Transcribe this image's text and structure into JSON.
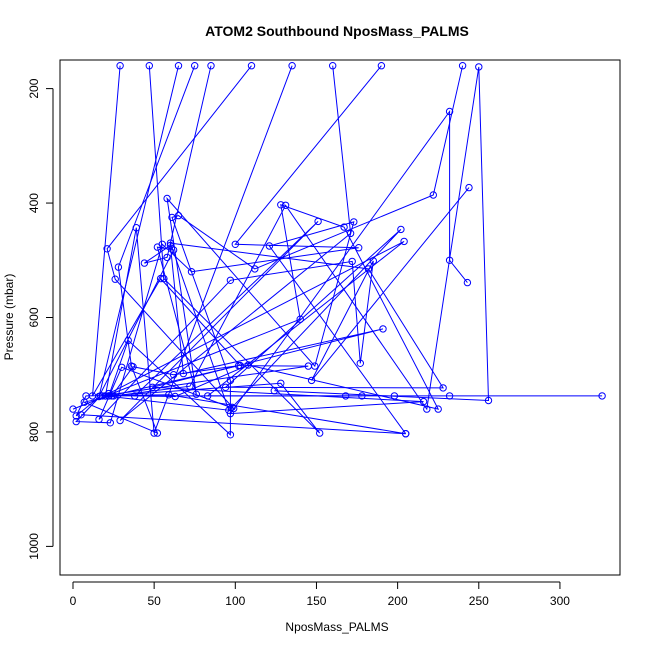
{
  "chart_data": {
    "type": "line",
    "title": "ATOM2 Southbound NposMass_PALMS",
    "xlabel": "NposMass_PALMS",
    "ylabel": "Pressure (mbar)",
    "xlim": [
      -8,
      337
    ],
    "ylim": [
      1050,
      150
    ],
    "y_reversed": true,
    "xticks": [
      0,
      50,
      100,
      150,
      200,
      250,
      300
    ],
    "yticks": [
      200,
      400,
      600,
      800,
      1000
    ],
    "color": "#0000ff",
    "grid": false,
    "legend": "none",
    "markers": "open-circle",
    "series": [
      {
        "x": [
          75,
          28,
          36,
          52,
          7,
          102,
          62,
          37,
          24
        ],
        "y": [
          160,
          512,
          685,
          802,
          748,
          684,
          700,
          686,
          737
        ]
      },
      {
        "x": [
          190,
          100,
          176,
          73,
          55,
          23,
          2,
          17,
          2,
          8,
          59,
          205,
          5
        ],
        "y": [
          160,
          472,
          478,
          520,
          472,
          784,
          782,
          737,
          772,
          737,
          735,
          803,
          770
        ]
      },
      {
        "x": [
          240,
          222,
          112,
          65,
          61,
          97,
          97,
          34,
          22,
          20,
          232,
          326,
          198
        ],
        "y": [
          160,
          386,
          515,
          422,
          425,
          710,
          805,
          640,
          737,
          737,
          737,
          737,
          737
        ]
      },
      {
        "x": [
          29,
          12,
          54,
          103,
          145,
          18,
          22,
          204,
          83,
          168,
          178
        ],
        "y": [
          160,
          737,
          532,
          684,
          685,
          737,
          733,
          467,
          737,
          737,
          737
        ]
      },
      {
        "x": [
          47,
          56,
          152,
          128,
          22,
          25,
          72,
          131,
          218,
          250,
          256,
          124
        ],
        "y": [
          160,
          532,
          802,
          715,
          737,
          737,
          720,
          404,
          760,
          162,
          745,
          728
        ]
      },
      {
        "x": [
          65,
          16,
          62,
          52,
          76,
          58,
          149,
          173,
          121,
          205
        ],
        "y": [
          160,
          738,
          482,
          477,
          734,
          392,
          685,
          433,
          475,
          803
        ]
      },
      {
        "x": [
          85,
          58,
          44,
          60,
          68,
          191,
          49,
          216,
          97,
          232,
          232,
          243
        ],
        "y": [
          160,
          495,
          505,
          474,
          698,
          620,
          722,
          747,
          768,
          240,
          500,
          539
        ]
      },
      {
        "x": [
          110,
          21,
          26,
          99,
          30,
          16,
          97,
          172,
          177,
          185,
          147,
          244
        ],
        "y": [
          160,
          480,
          533,
          759,
          687,
          778,
          535,
          502,
          680,
          501,
          710,
          373
        ]
      },
      {
        "x": [
          135,
          50,
          39,
          20,
          96,
          60,
          182,
          228,
          94,
          202,
          98
        ],
        "y": [
          160,
          802,
          443,
          737,
          762,
          470,
          515,
          723,
          722,
          446,
          757
        ]
      },
      {
        "x": [
          160,
          171,
          29,
          151,
          38,
          63,
          108,
          225,
          167,
          128,
          140,
          0
        ],
        "y": [
          160,
          453,
          780,
          432,
          737,
          738,
          683,
          760,
          442,
          403,
          603,
          760
        ]
      }
    ]
  }
}
